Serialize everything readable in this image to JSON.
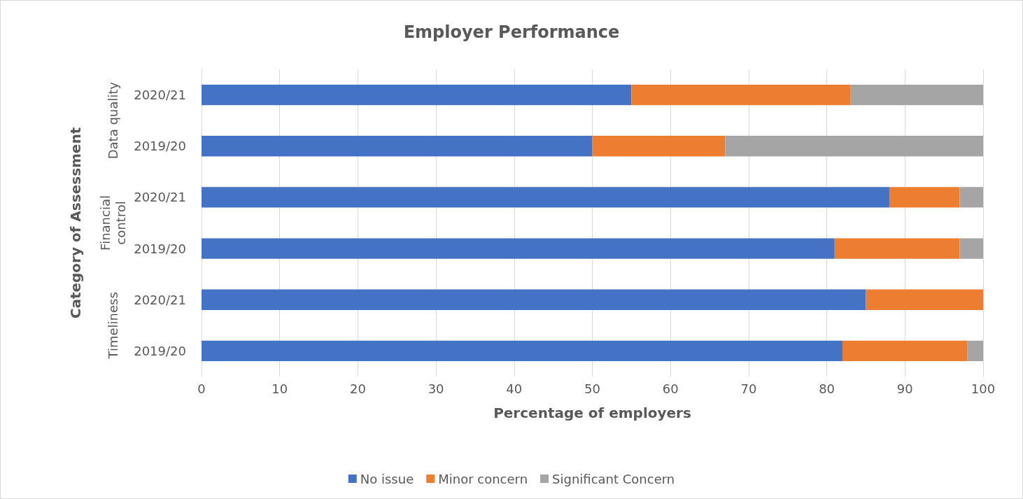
{
  "chart_data": {
    "type": "bar",
    "orientation": "horizontal",
    "stacked": true,
    "title": "Employer Performance",
    "xlabel": "Percentage of employers",
    "ylabel": "Category of Assessment",
    "categories": [
      "2020/21",
      "2019/20",
      "2020/21",
      "2019/20",
      "2020/21",
      "2019/20"
    ],
    "annotations": [
      "Data quality",
      "Financial\ncontrol",
      "Timeliness"
    ],
    "series": [
      {
        "name": "No issue",
        "color": "#4472c4",
        "values": [
          55,
          50,
          88,
          81,
          85,
          82
        ]
      },
      {
        "name": "Minor concern",
        "color": "#ed7d31",
        "values": [
          28,
          17,
          9,
          16,
          15,
          16
        ]
      },
      {
        "name": "Significant Concern",
        "color": "#a5a5a5",
        "values": [
          17,
          33,
          3,
          3,
          0,
          2
        ]
      }
    ],
    "xlim": [
      0,
      100
    ],
    "xticks": [
      0,
      10,
      20,
      30,
      40,
      50,
      60,
      70,
      80,
      90,
      100
    ],
    "grid": "x",
    "legend": "bottom"
  }
}
